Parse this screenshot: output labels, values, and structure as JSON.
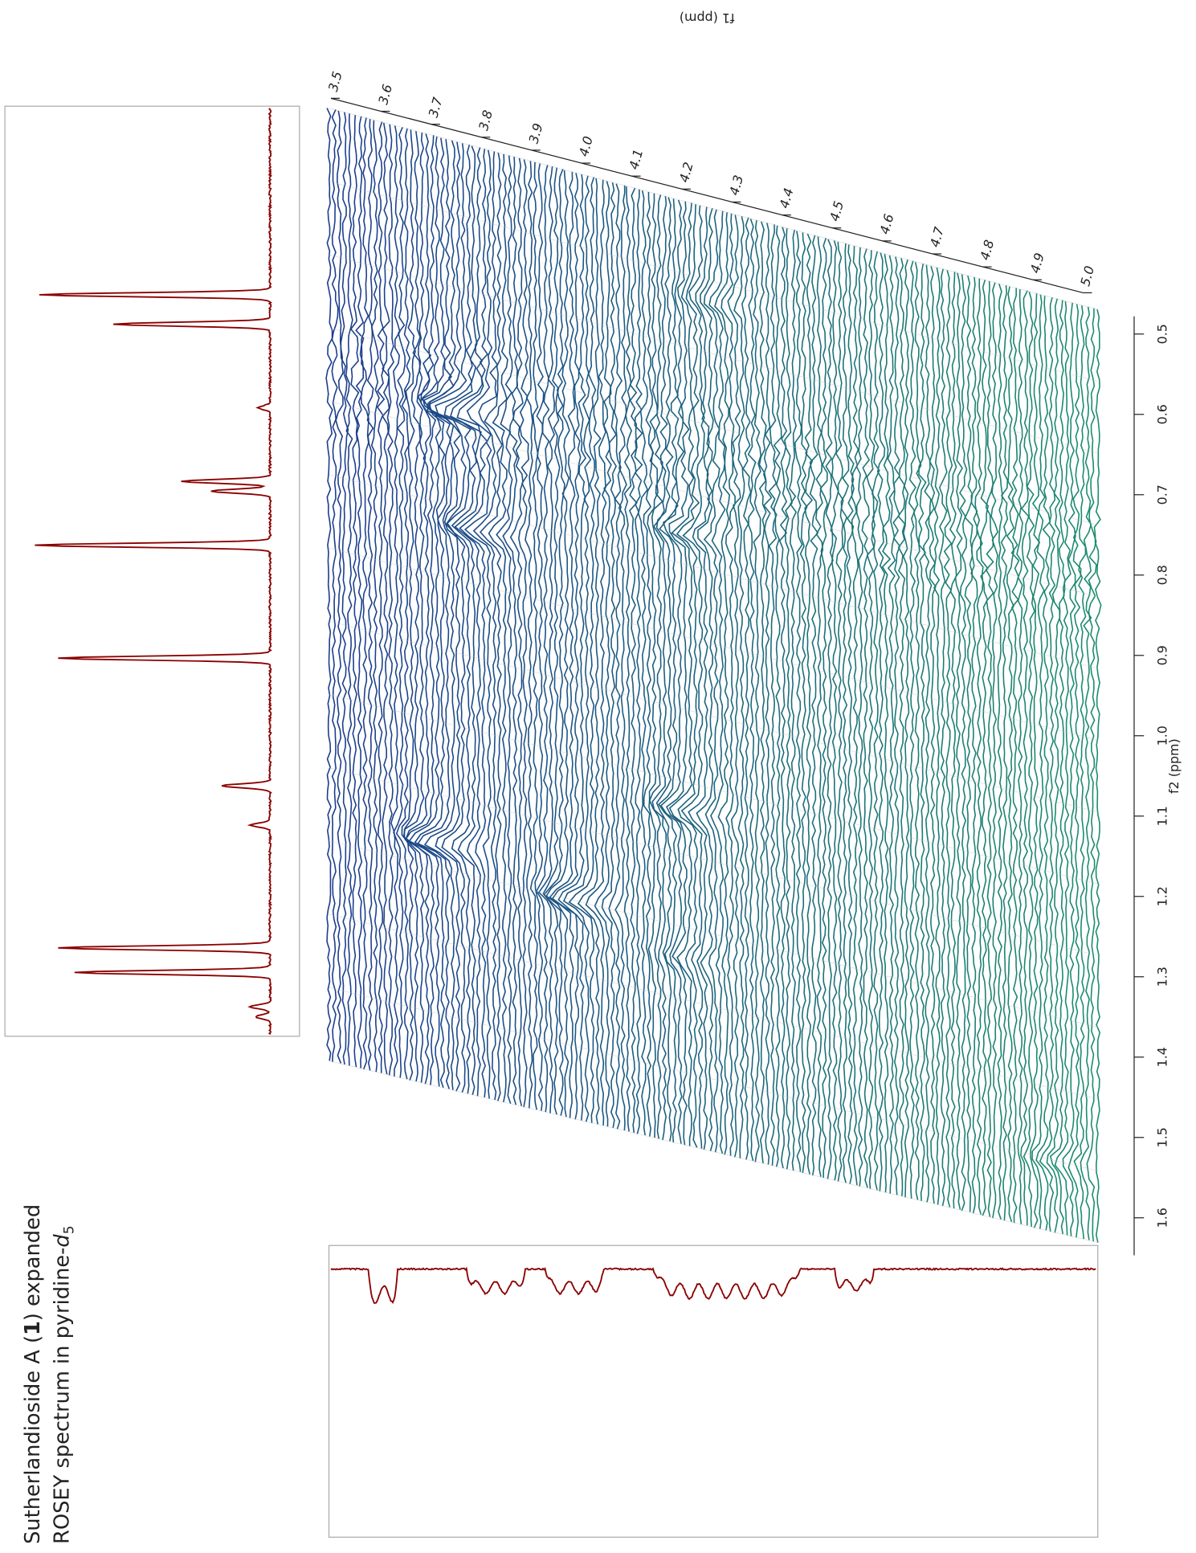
{
  "title": {
    "line1": [
      "Sutherlandioside A (",
      "1",
      ") expanded"
    ],
    "line2": [
      "ROSEY spectrum in pyridine-",
      "d",
      "5"
    ]
  },
  "f2_axis": {
    "label": "f2 (ppm)",
    "ticks": [
      0.5,
      0.6,
      0.7,
      0.8,
      0.9,
      {
        "value": 1,
        "label": "1.0"
      },
      1.1,
      1.2,
      1.3,
      1.4,
      1.5,
      1.6
    ]
  },
  "f1_axis": {
    "label": "f1 (ppm)",
    "ticks": [
      3.5,
      3.6,
      3.7,
      3.8,
      3.9,
      {
        "value": 4,
        "label": "4.0"
      },
      4.1,
      4.2,
      4.3,
      4.4,
      4.5,
      4.6,
      4.7,
      4.8,
      4.9,
      {
        "value": 5,
        "label": "5.0"
      }
    ]
  }
}
